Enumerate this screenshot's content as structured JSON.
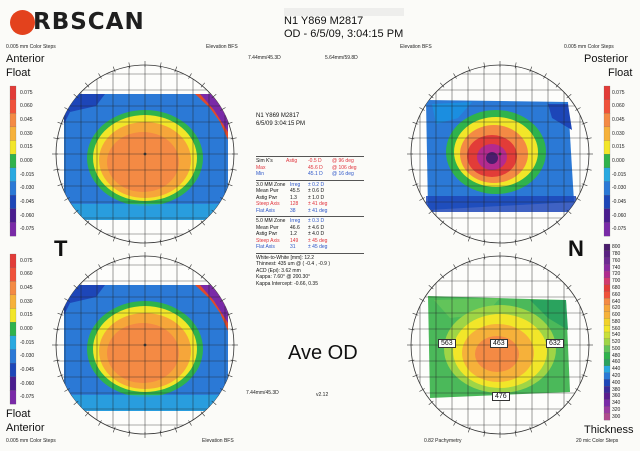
{
  "brand": {
    "name": "RBSCAN"
  },
  "header": {
    "patient_line": "N1 Y869 M2817",
    "date_line": "OD - 6/5/09, 3:04:15 PM"
  },
  "top_captions": {
    "left_scale": "0.005 mm Color Steps",
    "left_map": "Elevation BFS",
    "left_radius": "7.44mm/45.3D",
    "right_radius": "5.64mm/59.8D",
    "right_map": "Elevation BFS",
    "right_scale": "0.005 mm Color Steps"
  },
  "bottom_captions": {
    "left_scale": "0.005 mm Color Steps",
    "left_map": "Elevation BFS",
    "left_radius": "7.44mm/45.3D",
    "right_map": "0.82 Pachymetry",
    "right_scale": "20 mic Color Steps"
  },
  "map_labels": {
    "anterior_top": "Anterior",
    "float_top": "Float",
    "posterior": "Posterior",
    "float_right": "Float",
    "float_bottom": "Float",
    "anterior_bottom": "Anterior",
    "thickness": "Thickness",
    "temporal": "T",
    "nasal": "N"
  },
  "scales": {
    "elevation_left_top": [
      "0.075",
      "0.060",
      "0.045",
      "0.030",
      "0.015",
      "0.000",
      "-0.015",
      "-0.030",
      "-0.045",
      "-0.060",
      "-0.075"
    ],
    "elevation_left_bottom": [
      "0.075",
      "0.060",
      "0.045",
      "0.030",
      "0.015",
      "0.000",
      "-0.015",
      "-0.030",
      "-0.045",
      "-0.060",
      "-0.075"
    ],
    "elevation_right_top": [
      "0.075",
      "0.060",
      "0.045",
      "0.030",
      "0.015",
      "0.000",
      "-0.015",
      "-0.030",
      "-0.045",
      "-0.060",
      "-0.075"
    ],
    "thickness_right": [
      "800",
      "780",
      "760",
      "740",
      "720",
      "700",
      "680",
      "660",
      "640",
      "620",
      "600",
      "580",
      "560",
      "540",
      "520",
      "500",
      "480",
      "460",
      "440",
      "420",
      "400",
      "380",
      "360",
      "340",
      "320",
      "300"
    ]
  },
  "center": {
    "patient_line": "N1 Y869 M2817",
    "date_line": "6/5/09 3:04:15 PM",
    "sim_k_label": "Sim K's",
    "sim_k_astig": "Astig",
    "sim_k_astig_val": "-0.5 D",
    "sim_k_astig_axis": "@ 96 deg",
    "sim_k_max": "Max",
    "sim_k_max_val": "45.6 D",
    "sim_k_max_axis": "@ 106 deg",
    "sim_k_min": "Min",
    "sim_k_min_val": "45.1 D",
    "sim_k_min_axis": "@ 16 deg",
    "zone3": [
      [
        "3.0 MM Zone",
        "Irreg",
        "± 0.2 D"
      ],
      [
        "Mean Pwr",
        "45.5",
        "± 0.6 D"
      ],
      [
        "Astig Pwr",
        "1.3",
        "± 1.0 D"
      ],
      [
        "Steep Axis",
        "128",
        "± 41 deg"
      ],
      [
        "Flat Axis",
        "38",
        "± 41 deg"
      ]
    ],
    "zone5": [
      [
        "5.0 MM Zone",
        "Irreg",
        "± 0.3 D"
      ],
      [
        "Mean Pwr",
        "46.6",
        "± 4.6 D"
      ],
      [
        "Astig Pwr",
        "1.2",
        "± 4.0 D"
      ],
      [
        "Steep Axis",
        "149",
        "± 45 deg"
      ],
      [
        "Flat Axis",
        "31",
        "± 45 deg"
      ]
    ],
    "white_to_white": "White-to-White [mm]: 12.2",
    "thinnest": "Thinnest: 435 um @ ( -0.4 , -0.9 )",
    "acd": "ACD (Epi): 3.62 mm",
    "kappa": "Kappa: 7.60° @ 200.30°",
    "kappa_intercept": "Kappa Intercept: -0.66, 0.35",
    "ave_label": "Ave OD",
    "version": "v2.12"
  },
  "pachy": {
    "left": "563",
    "center": "463",
    "right": "632",
    "bottom": "476"
  }
}
